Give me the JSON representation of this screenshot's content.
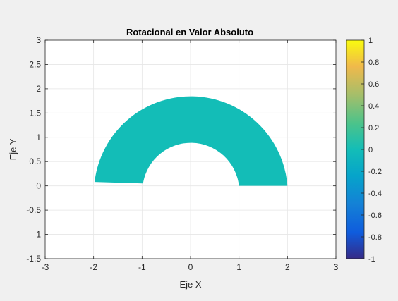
{
  "chart_data": {
    "type": "area",
    "title": "Rotacional en Valor Absoluto",
    "xlabel": "Eje X",
    "ylabel": "Eje Y",
    "xlim": [
      -3,
      3
    ],
    "ylim": [
      -1.5,
      3
    ],
    "xticks": [
      -3,
      -2,
      -1,
      0,
      1,
      2,
      3
    ],
    "xtick_labels": [
      "-3",
      "-2",
      "-1",
      "0",
      "1",
      "2",
      "3"
    ],
    "yticks": [
      -1.5,
      -1,
      -0.5,
      0,
      0.5,
      1,
      1.5,
      2,
      2.5,
      3
    ],
    "ytick_labels": [
      "-1.5",
      "-1",
      "-0.5",
      "0",
      "0.5",
      "1",
      "1.5",
      "2",
      "2.5",
      "3"
    ],
    "grid": true,
    "series": [
      {
        "shape": "half-annulus",
        "inner_radius": 1,
        "outer_radius": 2,
        "outer_start": [
          2,
          0
        ],
        "outer_end": [
          -1.98,
          0.08
        ],
        "inner_start": [
          -0.98,
          0.05
        ],
        "inner_end": [
          1,
          0
        ],
        "color": "#13bdb7"
      }
    ],
    "colorbar": {
      "limits": [
        -1,
        1
      ],
      "ticks": [
        1,
        0.8,
        0.6,
        0.4,
        0.2,
        0,
        -0.2,
        -0.4,
        -0.6,
        -0.8,
        -1
      ],
      "tick_labels": [
        "1",
        "0.8",
        "0.6",
        "0.4",
        "0.2",
        "0",
        "-0.2",
        "-0.4",
        "-0.6",
        "-0.8",
        "-1"
      ],
      "colormap": "parula"
    }
  }
}
